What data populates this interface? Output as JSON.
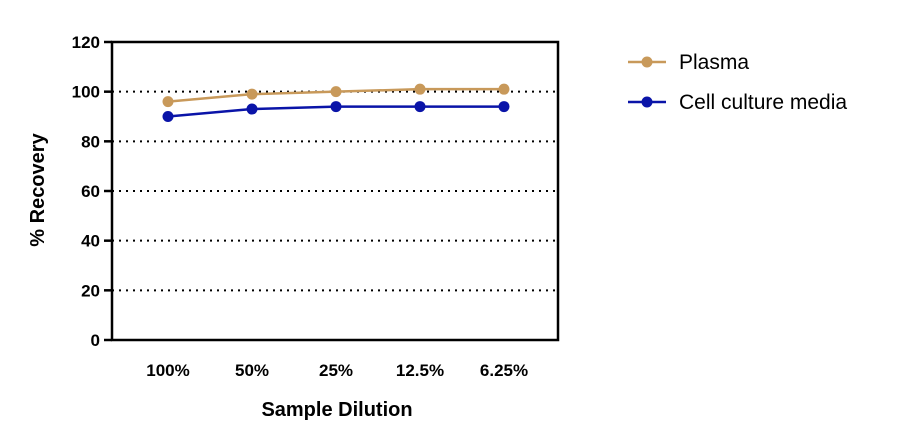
{
  "chart_data": {
    "type": "line",
    "title": "",
    "xlabel": "Sample Dilution",
    "ylabel": "% Recovery",
    "categories": [
      "100%",
      "50%",
      "25%",
      "12.5%",
      "6.25%"
    ],
    "ylim": [
      0,
      120
    ],
    "yticks": [
      0,
      20,
      40,
      60,
      80,
      100,
      120
    ],
    "grid": "horizontal dotted",
    "legend_position": "right",
    "series": [
      {
        "name": "Plasma",
        "color": "#c8995a",
        "values": [
          96,
          99,
          100,
          101,
          101
        ]
      },
      {
        "name": "Cell culture media",
        "color": "#0a14a8",
        "values": [
          90,
          93,
          94,
          94,
          94
        ]
      }
    ]
  }
}
